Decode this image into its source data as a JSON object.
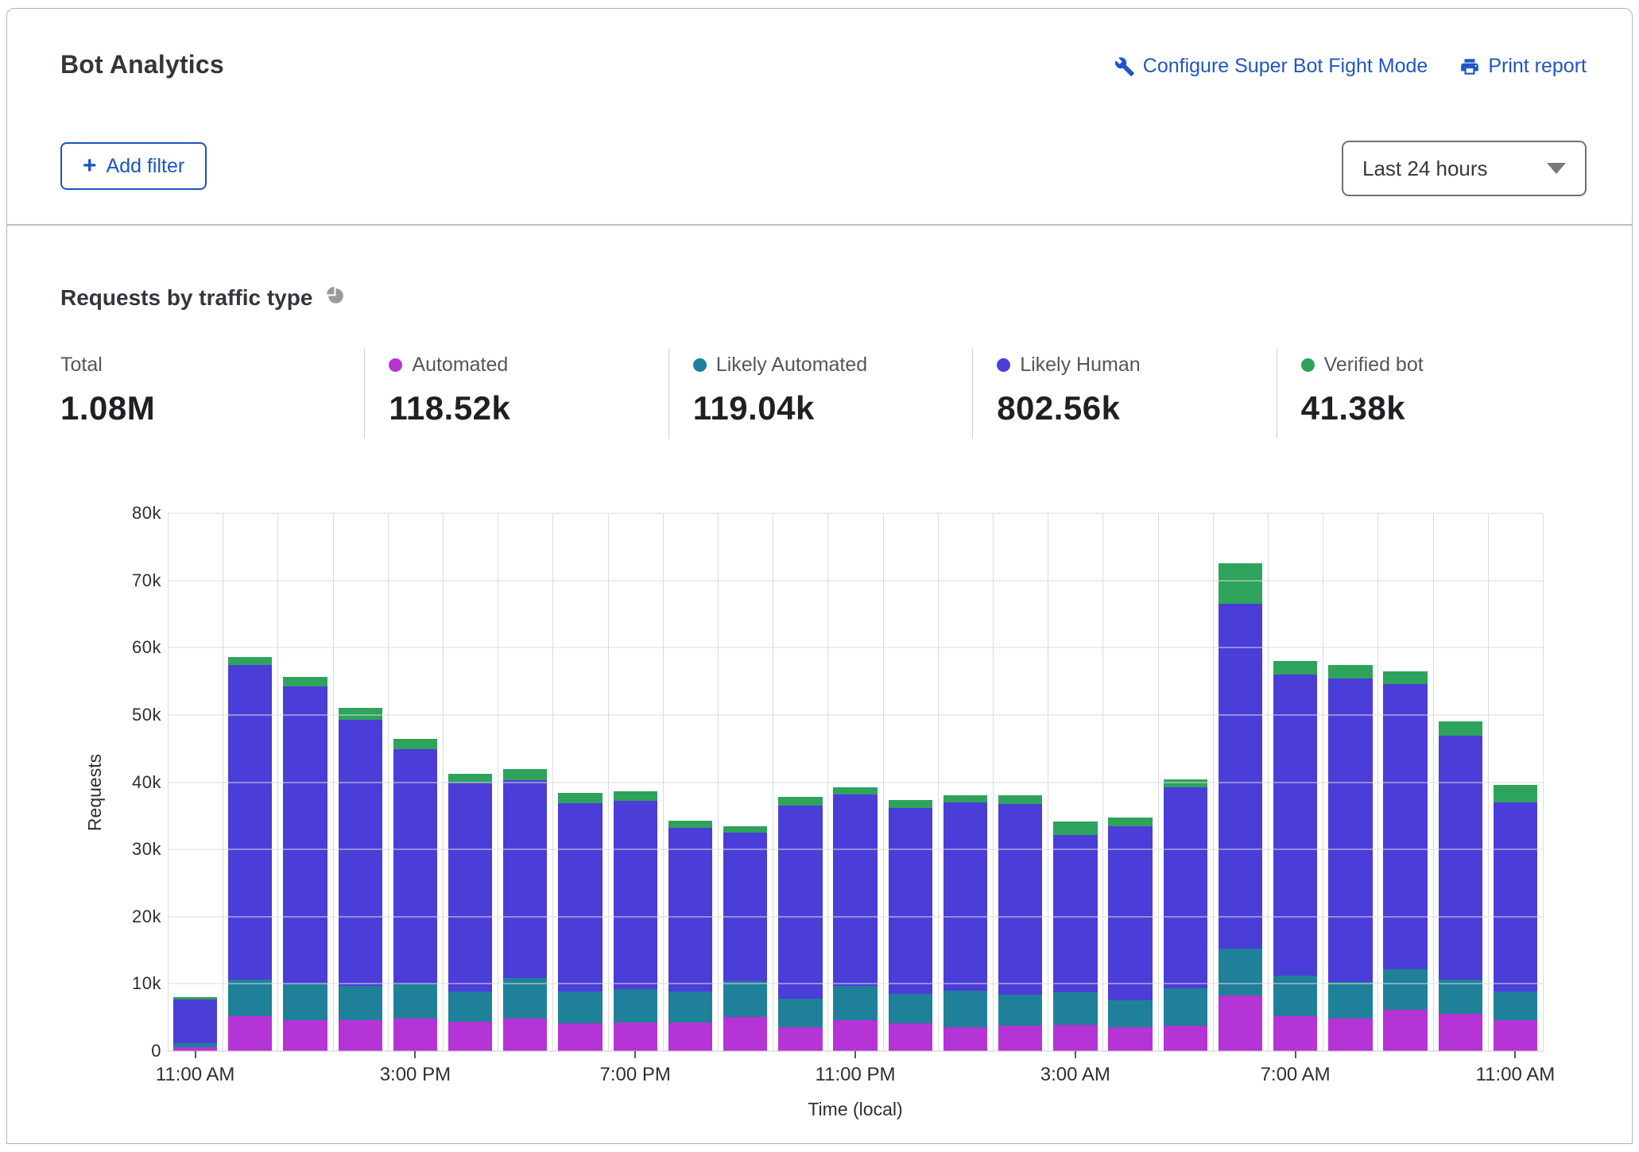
{
  "header": {
    "title": "Bot Analytics",
    "configure_link": "Configure Super Bot Fight Mode",
    "print_link": "Print report",
    "add_filter_label": "Add filter",
    "add_filter_plus": "+",
    "time_range_value": "Last 24 hours"
  },
  "section": {
    "title": "Requests by traffic type"
  },
  "stats": [
    {
      "label": "Total",
      "value": "1.08M",
      "color": null
    },
    {
      "label": "Automated",
      "value": "118.52k",
      "color": "#b434d6"
    },
    {
      "label": "Likely Automated",
      "value": "119.04k",
      "color": "#1f8099"
    },
    {
      "label": "Likely Human",
      "value": "802.56k",
      "color": "#4b3dd8"
    },
    {
      "label": "Verified bot",
      "value": "41.38k",
      "color": "#2da35c"
    }
  ],
  "chart_data": {
    "type": "bar",
    "stacked": true,
    "title": "Requests by traffic type",
    "xlabel": "Time (local)",
    "ylabel": "Requests",
    "ylim": [
      0,
      80000
    ],
    "ytick_step": 10000,
    "grid": true,
    "x_tick_every": 4,
    "x": [
      "11:00 AM",
      "12:00 PM",
      "1:00 PM",
      "2:00 PM",
      "3:00 PM",
      "4:00 PM",
      "5:00 PM",
      "6:00 PM",
      "7:00 PM",
      "8:00 PM",
      "9:00 PM",
      "10:00 PM",
      "11:00 PM",
      "12:00 AM",
      "1:00 AM",
      "2:00 AM",
      "3:00 AM",
      "4:00 AM",
      "5:00 AM",
      "6:00 AM",
      "7:00 AM",
      "8:00 AM",
      "9:00 AM",
      "10:00 AM",
      "11:00 AM"
    ],
    "x_tick_labels": [
      "11:00 AM",
      "3:00 PM",
      "7:00 PM",
      "11:00 PM",
      "3:00 AM",
      "7:00 AM",
      "11:00 AM"
    ],
    "series": [
      {
        "name": "Automated",
        "color": "#b434d6",
        "values": [
          600,
          5200,
          4600,
          4600,
          4800,
          4400,
          4900,
          4100,
          4300,
          4200,
          5100,
          3600,
          4600,
          4100,
          3500,
          3800,
          3900,
          3600,
          3800,
          8300,
          5200,
          4800,
          6200,
          5500,
          4600
        ]
      },
      {
        "name": "Likely Automated",
        "color": "#1f8099",
        "values": [
          600,
          5400,
          5400,
          5100,
          5200,
          4500,
          6000,
          4800,
          4900,
          4700,
          5300,
          4200,
          5100,
          4400,
          5500,
          4600,
          4900,
          4000,
          5500,
          6900,
          6000,
          5500,
          6000,
          5100,
          4300
        ]
      },
      {
        "name": "Likely Human",
        "color": "#4b3dd8",
        "values": [
          6500,
          46800,
          44200,
          39600,
          34900,
          31100,
          29400,
          28000,
          28000,
          24300,
          22100,
          28700,
          28500,
          27700,
          28000,
          28300,
          23300,
          25800,
          29900,
          51300,
          44800,
          45100,
          42400,
          36300,
          28100
        ]
      },
      {
        "name": "Verified bot",
        "color": "#2da35c",
        "values": [
          300,
          1200,
          1500,
          1800,
          1500,
          1300,
          1600,
          1500,
          1500,
          1100,
          900,
          1300,
          1000,
          1100,
          1000,
          1300,
          2000,
          1400,
          1200,
          6000,
          2000,
          2000,
          1900,
          2200,
          2600
        ]
      }
    ]
  }
}
